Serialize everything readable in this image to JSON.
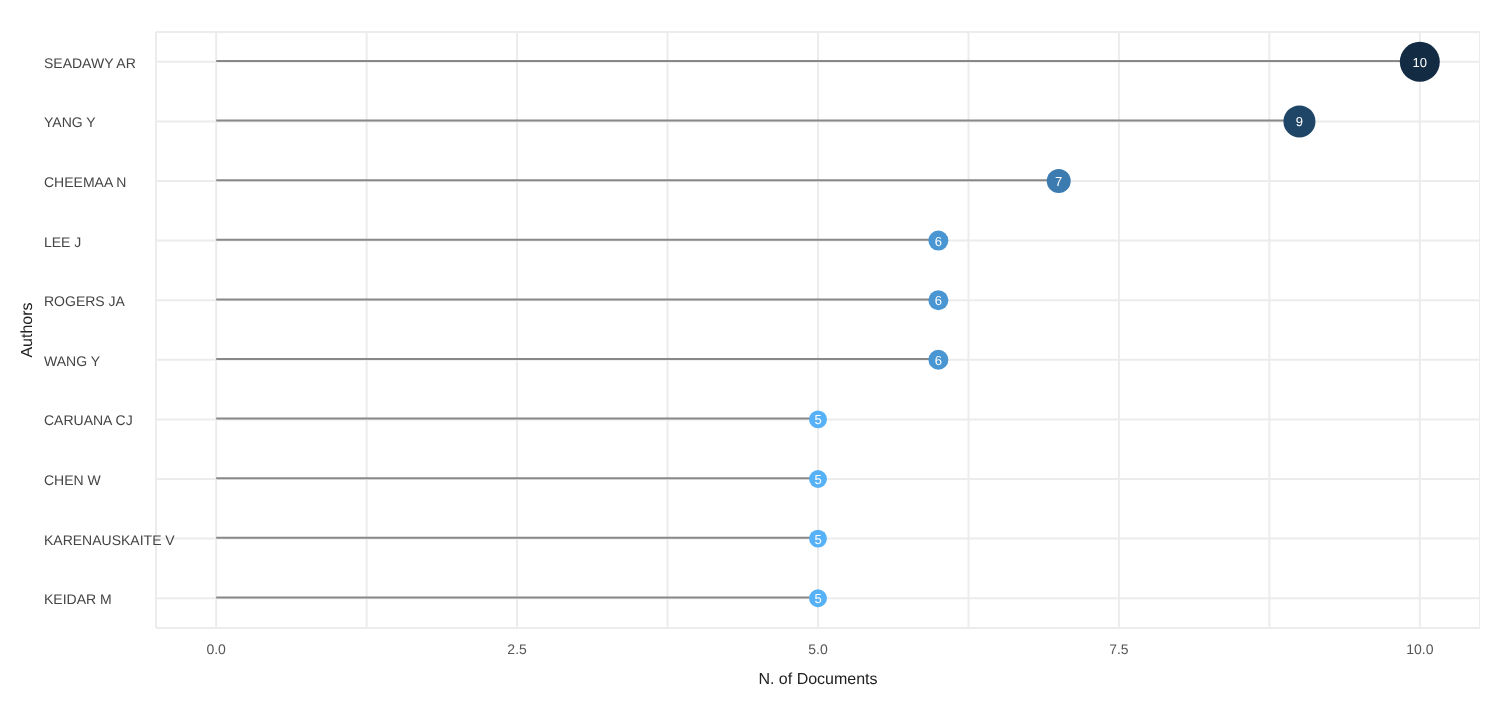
{
  "chart_data": {
    "type": "lollipop",
    "orientation": "horizontal",
    "xlabel": "N. of Documents",
    "ylabel": "Authors",
    "categories": [
      "SEADAWY AR",
      "YANG Y",
      "CHEEMAA N",
      "LEE J",
      "ROGERS JA",
      "WANG Y",
      "CARUANA CJ",
      "CHEN W",
      "KARENAUSKAITE V",
      "KEIDAR M"
    ],
    "values": [
      10,
      9,
      7,
      6,
      6,
      6,
      5,
      5,
      5,
      5
    ],
    "sizes": [
      1,
      0.64,
      0.36,
      0.25,
      0.25,
      0.25,
      0.2,
      0.2,
      0.2,
      0.2
    ],
    "colors": [
      "#132b43",
      "#204667",
      "#3b7baf",
      "#4996d3",
      "#4996d3",
      "#4996d3",
      "#56b1f7",
      "#56b1f7",
      "#56b1f7",
      "#56b1f7"
    ],
    "xlim": [
      -0.5,
      10.5
    ],
    "xticks": [
      {
        "value": 0,
        "label": "0.0"
      },
      {
        "value": 1.25,
        "label": null
      },
      {
        "value": 2.5,
        "label": "2.5"
      },
      {
        "value": 3.75,
        "label": null
      },
      {
        "value": 5,
        "label": "5.0"
      },
      {
        "value": 6.25,
        "label": null
      },
      {
        "value": 7.5,
        "label": "7.5"
      },
      {
        "value": 8.75,
        "label": null
      },
      {
        "value": 10,
        "label": "10.0"
      }
    ],
    "grid": true,
    "data_labels": true
  }
}
